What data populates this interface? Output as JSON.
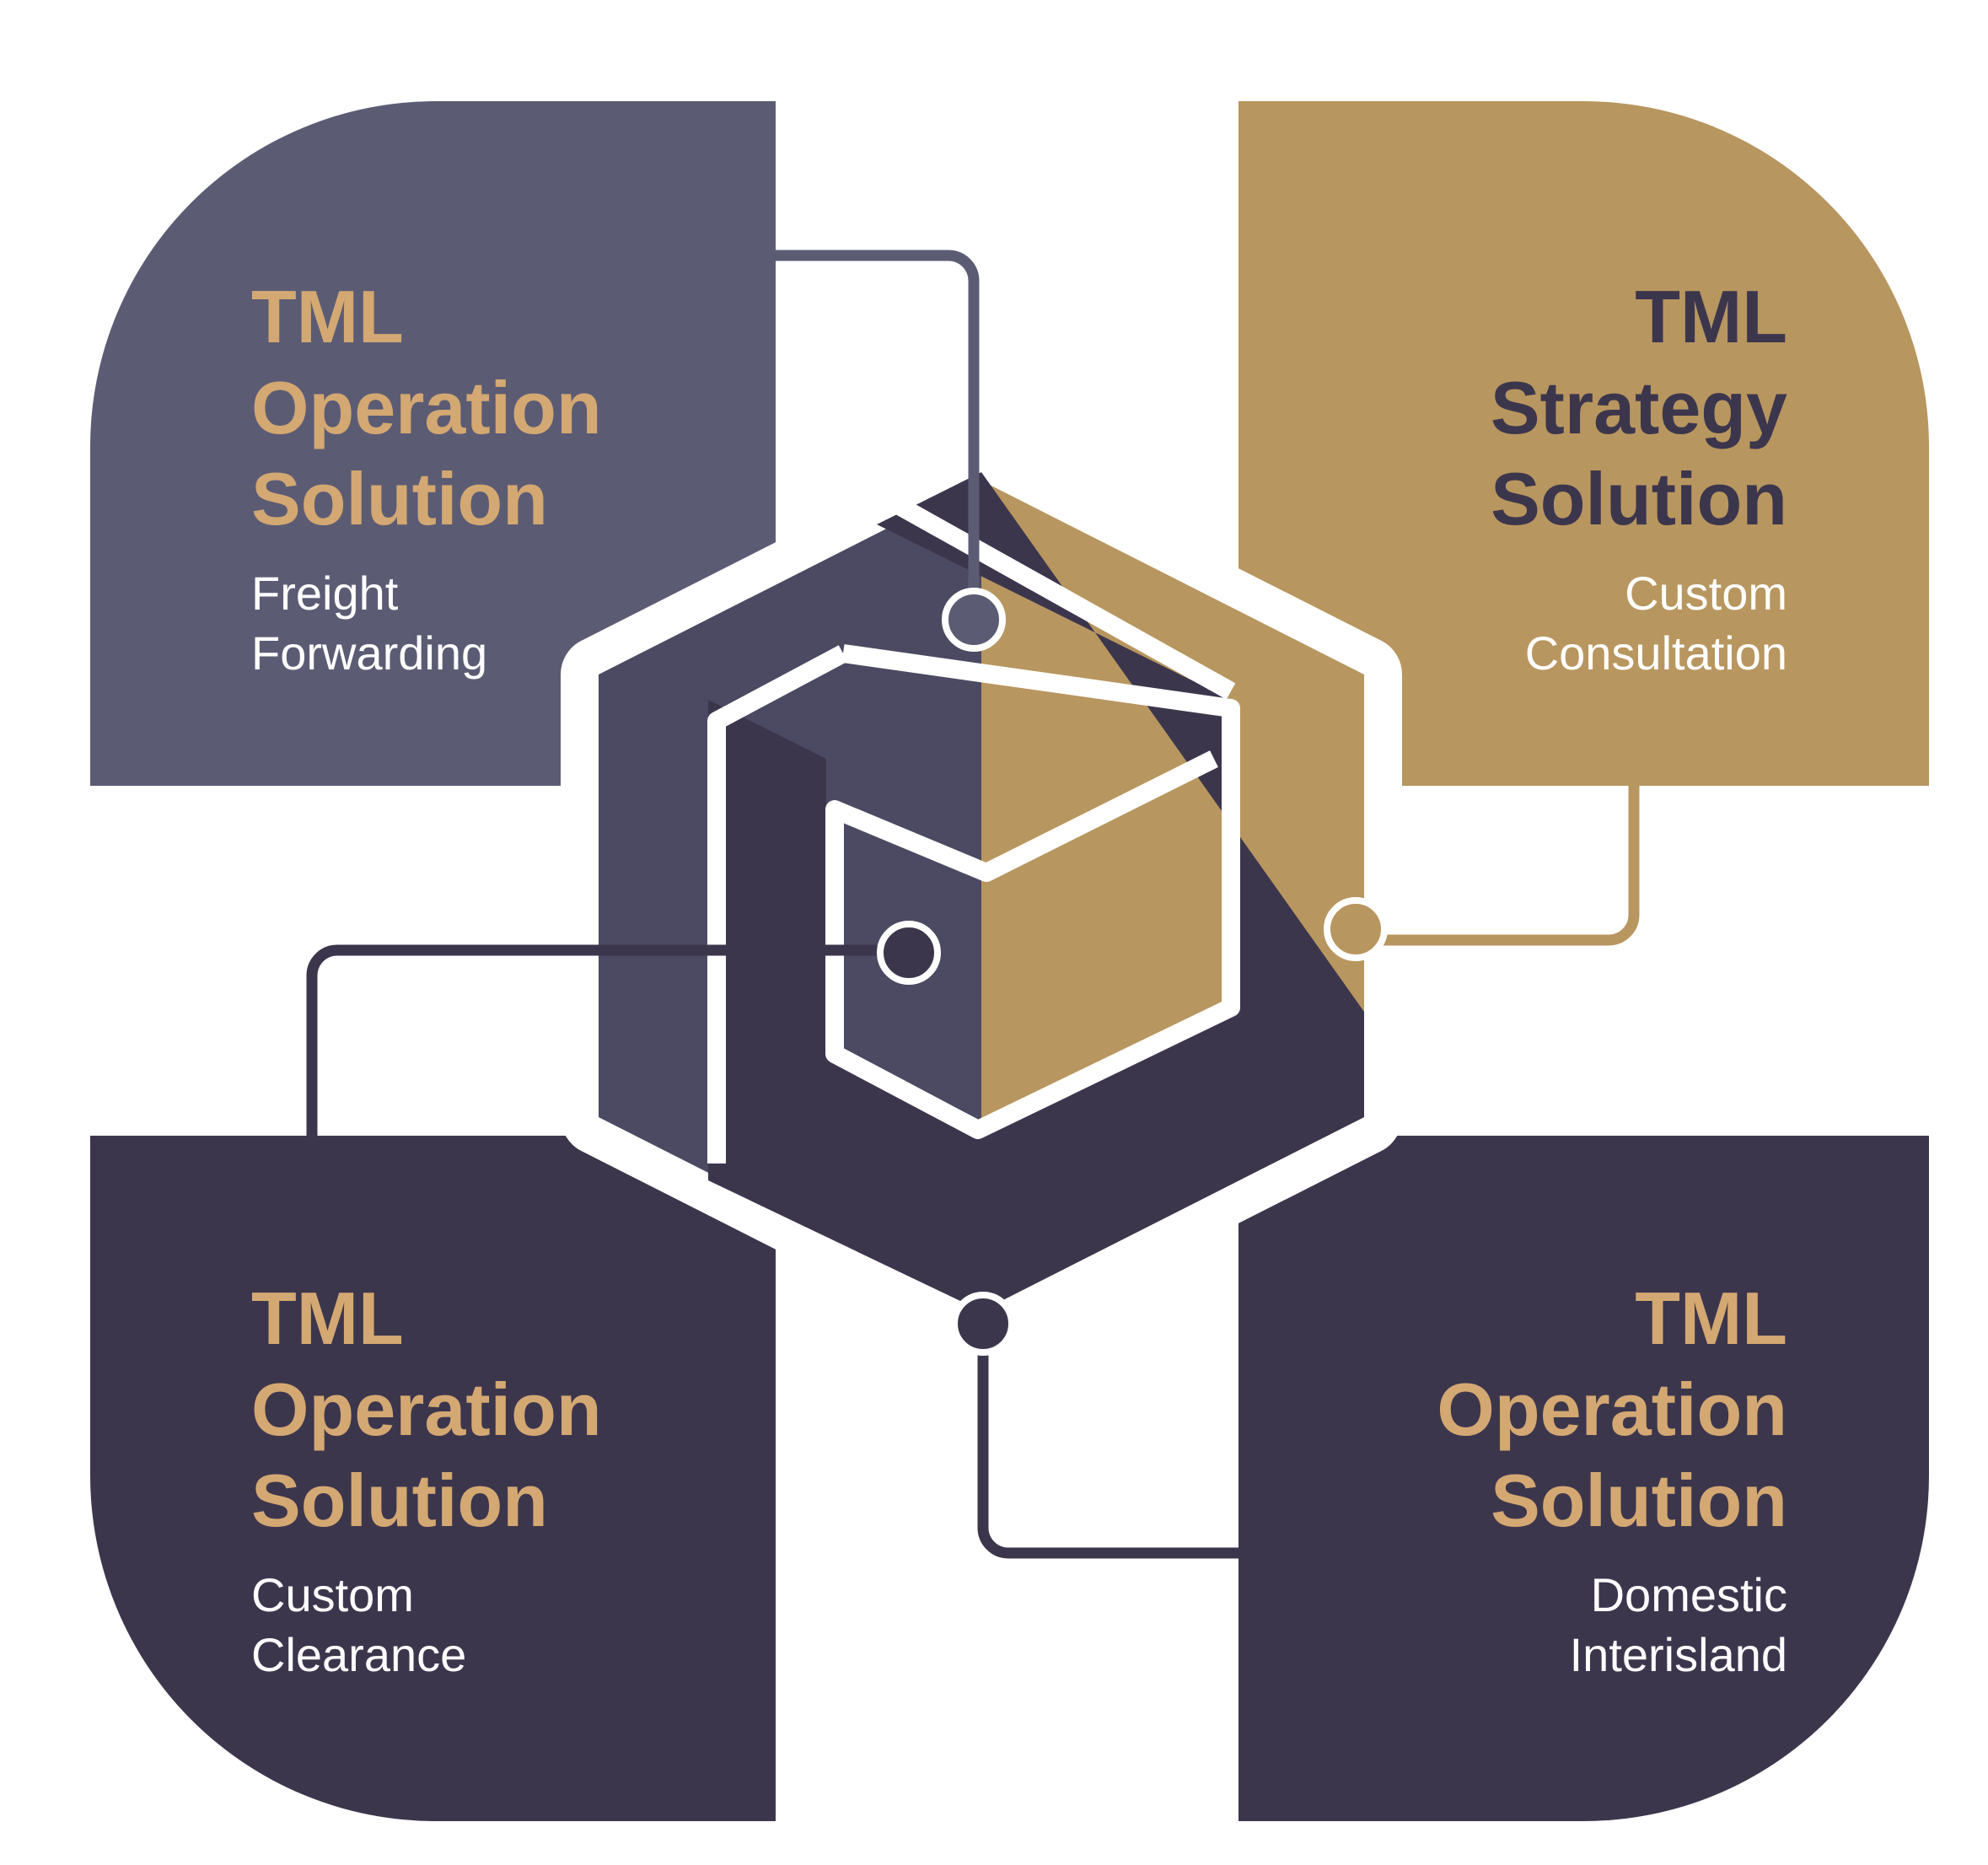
{
  "colors": {
    "slate": "#5b5c74",
    "dark": "#3c364d",
    "gold": "#b8965f",
    "title_gold": "#d4a872",
    "title_dark": "#3c364d",
    "text_white": "#ffffff"
  },
  "logo": {
    "name": "TML hexagon cube logo"
  },
  "cards": [
    {
      "id": "top-left",
      "title": [
        "TML",
        "Operation",
        "Solution"
      ],
      "subtitle": [
        "Freight",
        "Forwarding"
      ]
    },
    {
      "id": "top-right",
      "title": [
        "TML",
        "Strategy",
        "Solution"
      ],
      "subtitle": [
        "Custom",
        "Consultation"
      ]
    },
    {
      "id": "bottom-left",
      "title": [
        "TML",
        "Operation",
        "Solution"
      ],
      "subtitle": [
        "Custom",
        "Clearance"
      ]
    },
    {
      "id": "bottom-right",
      "title": [
        "TML",
        "Operation",
        "Solution"
      ],
      "subtitle": [
        "Domestic",
        "Interisland"
      ]
    }
  ]
}
